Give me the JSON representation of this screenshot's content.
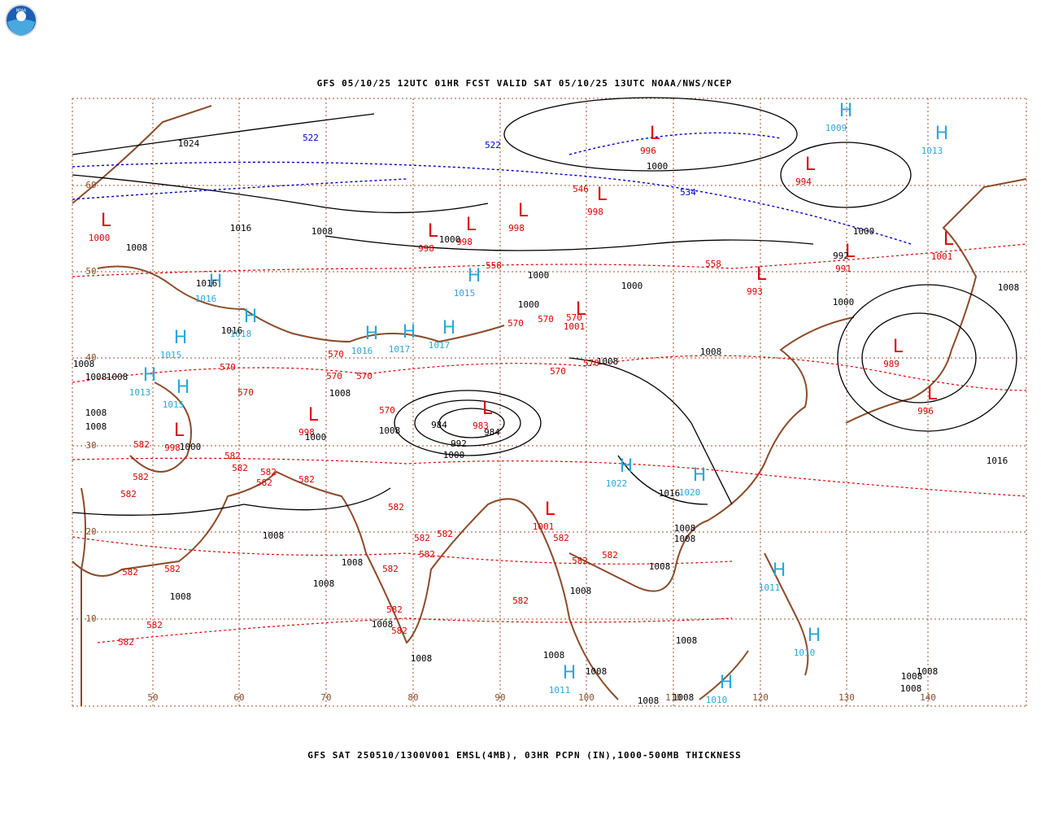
{
  "header": {
    "title": "GFS 05/10/25 12UTC 01HR FCST VALID SAT 05/10/25 13UTC NOAA/NWS/NCEP",
    "logo": "NOAA"
  },
  "footer": {
    "caption": "GFS SAT 250510/1300V001 EMSL(4MB), 03HR PCPN (IN),1000-500MB THICKNESS"
  },
  "map": {
    "lon_labels": [
      "50",
      "60",
      "70",
      "80",
      "90",
      "100",
      "110",
      "120",
      "130",
      "140"
    ],
    "lat_labels": [
      "60",
      "50",
      "40",
      "30",
      "20",
      "10"
    ],
    "highs": [
      {
        "label": "H",
        "value": 1009
      },
      {
        "label": "H",
        "value": 1013
      },
      {
        "label": "H",
        "value": 1016
      },
      {
        "label": "H",
        "value": 1018
      },
      {
        "label": "H",
        "value": 1015
      },
      {
        "label": "H",
        "value": 1013
      },
      {
        "label": "H",
        "value": 1015
      },
      {
        "label": "H",
        "value": 1016
      },
      {
        "label": "H",
        "value": 1017
      },
      {
        "label": "H",
        "value": 1017
      },
      {
        "label": "H",
        "value": 1015
      },
      {
        "label": "H",
        "value": 1022
      },
      {
        "label": "H",
        "value": 1020
      },
      {
        "label": "H",
        "value": 1011
      },
      {
        "label": "H",
        "value": 1010
      },
      {
        "label": "H",
        "value": 1011
      },
      {
        "label": "H",
        "value": 1010
      }
    ],
    "lows": [
      {
        "label": "L",
        "value": 996
      },
      {
        "label": "L",
        "value": 994
      },
      {
        "label": "L",
        "value": 1000
      },
      {
        "label": "L",
        "value": 998
      },
      {
        "label": "L",
        "value": 998
      },
      {
        "label": "L",
        "value": 998
      },
      {
        "label": "L",
        "value": 998
      },
      {
        "label": "L",
        "value": 991
      },
      {
        "label": "L",
        "value": 993
      },
      {
        "label": "L",
        "value": 1001
      },
      {
        "label": "L",
        "value": 1001
      },
      {
        "label": "L",
        "value": 989
      },
      {
        "label": "L",
        "value": 996
      },
      {
        "label": "L",
        "value": 983
      },
      {
        "label": "L",
        "value": 998
      },
      {
        "label": "L",
        "value": 998
      },
      {
        "label": "L",
        "value": 1001
      }
    ],
    "isobar_labels": [
      1024,
      1000,
      1016,
      1008,
      1008,
      1000,
      1000,
      992,
      1016,
      1016,
      1000,
      1000,
      1000,
      1008,
      1000,
      1008,
      1008,
      1008,
      1008,
      1008,
      1008,
      1008,
      1008,
      1008,
      1000,
      1000,
      984,
      984,
      992,
      1000,
      1016,
      1016,
      1008,
      1008,
      1008,
      1008,
      1008,
      1008,
      1008,
      1008,
      1008,
      1008,
      1008,
      1008,
      1008,
      1008,
      1008,
      1008,
      1008,
      1008
    ],
    "thickness_labels": [
      {
        "value": 522,
        "color": "#0000cc"
      },
      {
        "value": 522,
        "color": "#0000cc"
      },
      {
        "value": 534,
        "color": "#0000cc"
      },
      {
        "value": 546,
        "color": "#dd0000"
      },
      {
        "value": 558,
        "color": "#dd0000"
      },
      {
        "value": 558,
        "color": "#dd0000"
      },
      {
        "value": 570,
        "color": "#dd0000"
      },
      {
        "value": 570,
        "color": "#dd0000"
      },
      {
        "value": 570,
        "color": "#dd0000"
      },
      {
        "value": 570,
        "color": "#dd0000"
      },
      {
        "value": 570,
        "color": "#dd0000"
      },
      {
        "value": 570,
        "color": "#dd0000"
      },
      {
        "value": 570,
        "color": "#dd0000"
      },
      {
        "value": 570,
        "color": "#dd0000"
      },
      {
        "value": 570,
        "color": "#dd0000"
      },
      {
        "value": 570,
        "color": "#dd0000"
      },
      {
        "value": 570,
        "color": "#dd0000"
      },
      {
        "value": 582,
        "color": "#dd0000"
      },
      {
        "value": 582,
        "color": "#dd0000"
      },
      {
        "value": 582,
        "color": "#dd0000"
      },
      {
        "value": 582,
        "color": "#dd0000"
      },
      {
        "value": 582,
        "color": "#dd0000"
      },
      {
        "value": 582,
        "color": "#dd0000"
      },
      {
        "value": 582,
        "color": "#dd0000"
      },
      {
        "value": 582,
        "color": "#dd0000"
      },
      {
        "value": 582,
        "color": "#dd0000"
      },
      {
        "value": 582,
        "color": "#dd0000"
      },
      {
        "value": 582,
        "color": "#dd0000"
      },
      {
        "value": 582,
        "color": "#dd0000"
      },
      {
        "value": 582,
        "color": "#dd0000"
      },
      {
        "value": 582,
        "color": "#dd0000"
      },
      {
        "value": 582,
        "color": "#dd0000"
      },
      {
        "value": 582,
        "color": "#dd0000"
      },
      {
        "value": 582,
        "color": "#dd0000"
      },
      {
        "value": 582,
        "color": "#dd0000"
      },
      {
        "value": 582,
        "color": "#dd0000"
      },
      {
        "value": 582,
        "color": "#dd0000"
      },
      {
        "value": 582,
        "color": "#dd0000"
      },
      {
        "value": 582,
        "color": "#dd0000"
      },
      {
        "value": 582,
        "color": "#dd0000"
      }
    ]
  }
}
